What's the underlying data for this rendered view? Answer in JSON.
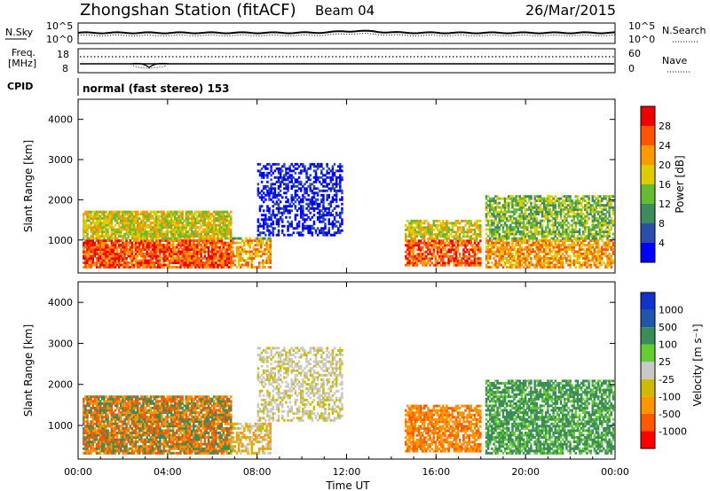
{
  "header": {
    "station": "Zhongshan Station (fitACF)",
    "beam": "Beam 04",
    "date": "26/Mar/2015"
  },
  "top_panel": {
    "left_label": "N.Sky",
    "left_ticks": [
      "10^5",
      "10^0"
    ],
    "right_ticks": [
      "10^5",
      "10^0"
    ],
    "right_label": "N.Search"
  },
  "freq_panel": {
    "left_label_1": "Freq.",
    "left_label_2": "[MHz]",
    "left_ticks": [
      "18",
      "8"
    ],
    "right_ticks": [
      "60",
      "0"
    ],
    "right_label": "Nave"
  },
  "cpid": {
    "label": "CPID",
    "value": "normal (fast stereo) 153"
  },
  "colors": {
    "power_scale": [
      "#0000ff",
      "#2b4ea8",
      "#3f8a5f",
      "#66bb33",
      "#ddcc00",
      "#ff9900",
      "#ff5500",
      "#ee0000"
    ],
    "velocity_scale": [
      "#ff0000",
      "#ff5a00",
      "#ff9500",
      "#ccbb00",
      "#c8c8c8",
      "#66cc33",
      "#3c8c5a",
      "#2255aa",
      "#1133cc"
    ]
  },
  "chart_data": [
    {
      "type": "heatmap",
      "name": "power",
      "ylabel": "Slant Range [km]",
      "colorbar_label": "Power [dB]",
      "colorbar_ticks": [
        "4",
        "8",
        "12",
        "16",
        "20",
        "24",
        "28"
      ],
      "y_ticks": [
        "1000",
        "2000",
        "3000",
        "4000"
      ],
      "ylim": [
        180,
        4500
      ],
      "x_ticks": [
        "00:00",
        "04:00",
        "08:00",
        "12:00",
        "16:00",
        "20:00",
        "00:00"
      ],
      "xlim_hours": [
        0,
        24
      ]
    },
    {
      "type": "heatmap",
      "name": "velocity",
      "ylabel": "Slant Range [km]",
      "colorbar_label": "Velocity [m s⁻¹]",
      "colorbar_ticks": [
        "-1000",
        "-500",
        "-100",
        "-25",
        "25",
        "100",
        "500",
        "1000"
      ],
      "y_ticks": [
        "1000",
        "2000",
        "3000",
        "4000"
      ],
      "ylim": [
        180,
        4500
      ],
      "x_ticks": [
        "00:00",
        "04:00",
        "08:00",
        "12:00",
        "16:00",
        "20:00",
        "00:00"
      ],
      "xlim_hours": [
        0,
        24
      ],
      "xlabel": "Time UT"
    }
  ]
}
